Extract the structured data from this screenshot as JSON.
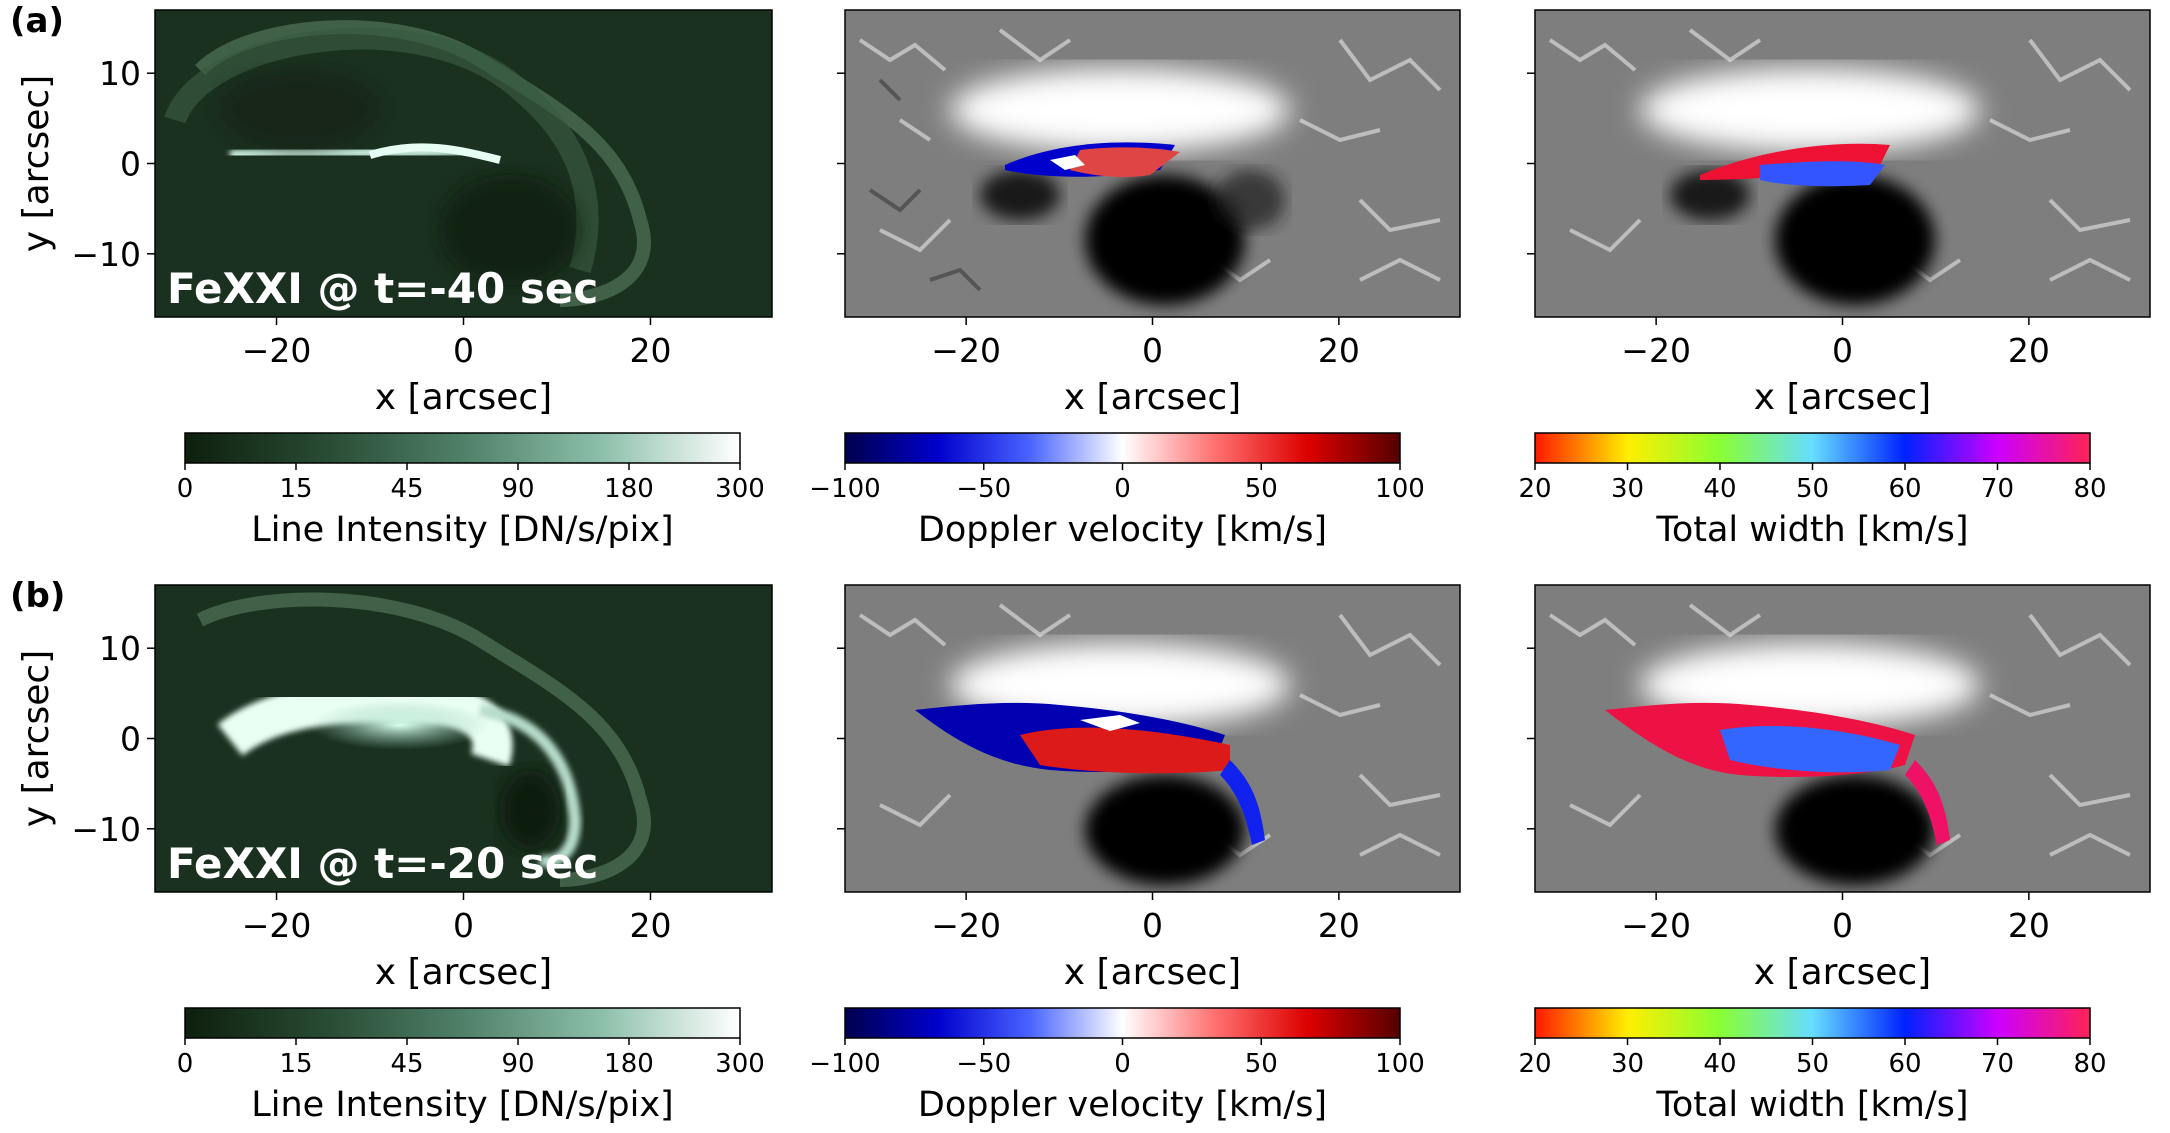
{
  "chart_data": {
    "type": "heatmap",
    "panel_labels": [
      "(a)",
      "(b)"
    ],
    "columns": [
      "intensity",
      "doppler",
      "width"
    ],
    "rows": [
      {
        "label": "(a)",
        "annotation": "FeXXI @ t=-40 sec"
      },
      {
        "label": "(b)",
        "annotation": "FeXXI @ t=-20 sec"
      }
    ],
    "axes": {
      "x": {
        "label": "x [arcsec]",
        "range": [
          -33,
          33
        ],
        "ticks": [
          -20,
          0,
          20
        ],
        "tick_labels": [
          "−20",
          "0",
          "20"
        ]
      },
      "y": {
        "label": "y [arcsec]",
        "range": [
          -17,
          17
        ],
        "ticks": [
          10,
          0,
          -10
        ],
        "tick_labels": [
          "10",
          "0",
          "−10"
        ]
      }
    },
    "colorbars": [
      {
        "label": "Line Intensity [DN/s/pix]",
        "ticks": [
          "0",
          "15",
          "45",
          "90",
          "180",
          "300"
        ],
        "positions": [
          0,
          0.2,
          0.4,
          0.6,
          0.8,
          1.0
        ],
        "stops": [
          "#0d1f0d",
          "#284a33",
          "#4f8068",
          "#8cbfaa",
          "#ffffff"
        ]
      },
      {
        "label": "Doppler velocity [km/s]",
        "ticks": [
          "−100",
          "−50",
          "0",
          "50",
          "100"
        ],
        "positions": [
          0,
          0.25,
          0.5,
          0.75,
          1.0
        ],
        "stops": [
          "#00004d",
          "#0000cc",
          "#4a64ff",
          "#ffffff",
          "#ff7070",
          "#dd0000",
          "#550000"
        ]
      },
      {
        "label": "Total width [km/s]",
        "ticks": [
          "20",
          "30",
          "40",
          "50",
          "60",
          "70",
          "80"
        ],
        "positions": [
          0,
          0.1667,
          0.3333,
          0.5,
          0.6667,
          0.8333,
          1.0
        ],
        "stops": [
          "#ff1a00",
          "#ffee00",
          "#88ff33",
          "#66ddff",
          "#0022ff",
          "#cc00ff",
          "#ff2255"
        ]
      }
    ]
  }
}
